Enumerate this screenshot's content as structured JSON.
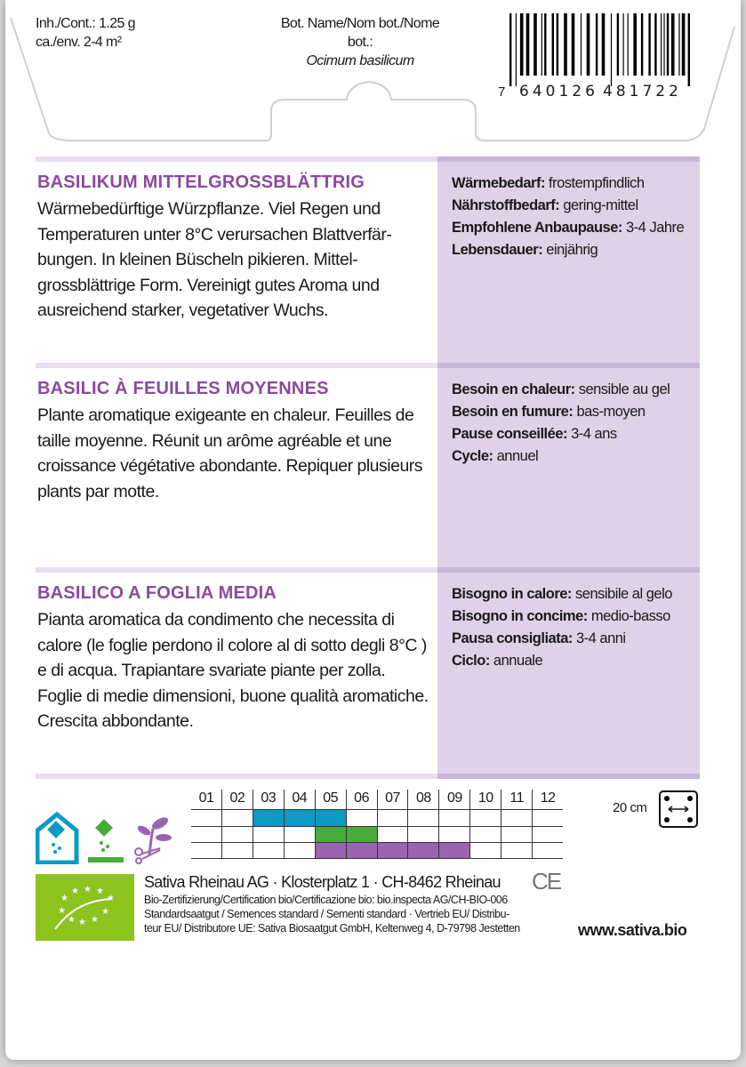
{
  "header": {
    "content_line1": "Inh./Cont.: 1.25 g",
    "content_line2": "ca./env. 2-4 m²",
    "bot_label": "Bot. Name/Nom bot./Nome bot.:",
    "bot_name": "Ocimum basilicum",
    "barcode_first": "7",
    "barcode_left": "640126",
    "barcode_right": "481722"
  },
  "sections": [
    {
      "title": "BASILIKUM MITTELGROSSBLÄTTRIG",
      "text": "Wärmebedürftige Würzpflanze. Viel Regen und Temperaturen unter 8°C verursachen Blattverfär-bungen. In kleinen Büscheln pikieren.  Mittel-grossblättrige Form. Vereinigt gutes Aroma und ausreichend starker, vegetativer Wuchs.",
      "props": [
        {
          "k": "Wärmebedarf:",
          "v": " frostempfindlich"
        },
        {
          "k": "Nährstoffbedarf:",
          "v": " gering-mittel"
        },
        {
          "k": "Empfohlene Anbaupause:",
          "v": " 3-4 Jahre"
        },
        {
          "k": "Lebensdauer:",
          "v": " einjährig"
        }
      ]
    },
    {
      "title": "BASILIC À FEUILLES MOYENNES",
      "text": "Plante aromatique exigeante en chaleur. Feuilles de taille moyenne. Réunit un arôme agréable et une croissance végétative abondante. Repiquer plusieurs plants par motte.",
      "props": [
        {
          "k": "Besoin en chaleur:",
          "v": " sensible au gel"
        },
        {
          "k": "Besoin en fumure:",
          "v": " bas-moyen"
        },
        {
          "k": "Pause conseillée:",
          "v": " 3-4 ans"
        },
        {
          "k": "Cycle:",
          "v": " annuel"
        }
      ]
    },
    {
      "title": "BASILICO A FOGLIA MEDIA",
      "text": "Pianta aromatica da condimento che necessita di calore (le foglie perdono il colore al di sotto degli 8°C ) e di acqua. Trapiantare svariate piante per zolla. Foglie di medie dimensioni, buone qualità aromatiche. Crescita abbondante.",
      "props": [
        {
          "k": "Bisogno in calore:",
          "v": " sensibile al gelo"
        },
        {
          "k": "Bisogno in concime:",
          "v": " medio-basso"
        },
        {
          "k": "Pausa consigliata:",
          "v": " 3-4 anni"
        },
        {
          "k": "Ciclo:",
          "v": " annuale"
        }
      ]
    }
  ],
  "calendar": {
    "months": [
      "01",
      "02",
      "03",
      "04",
      "05",
      "06",
      "07",
      "08",
      "09",
      "10",
      "11",
      "12"
    ],
    "rows": [
      {
        "icon": "greenhouse-sowing-icon",
        "color": "#0a9bc4",
        "months": [
          3,
          4,
          5
        ]
      },
      {
        "icon": "outdoor-sowing-icon",
        "color": "#4aab3a",
        "months": [
          5,
          6
        ]
      },
      {
        "icon": "transplant-icon",
        "color": "#9b64b0",
        "months": [
          5,
          6,
          7,
          8,
          9
        ]
      }
    ]
  },
  "spacing": {
    "label": "20 cm",
    "icon": "plant-spacing-icon"
  },
  "footer": {
    "company": "Sativa Rheinau AG · Klosterplatz 1 · CH-8462 Rheinau",
    "line1": "Bio-Zertifizierung/Certification bio/Certificazione bio: bio.inspecta AG/CH-BIO-006",
    "line2": "Standardsaatgut / Semences standard / Sementi standard · Vertrieb EU/ Distribu-",
    "line3": "teur EU/ Distributore UE: Sativa Biosaatgut GmbH, Keltenweg 4, D-79798 Jestetten",
    "website": "www.sativa.bio",
    "ce_mark": "CE",
    "eu_logo_color": "#8dc21f"
  },
  "colors": {
    "heading": "#8a4a9e",
    "panel": "#ded1e8"
  }
}
